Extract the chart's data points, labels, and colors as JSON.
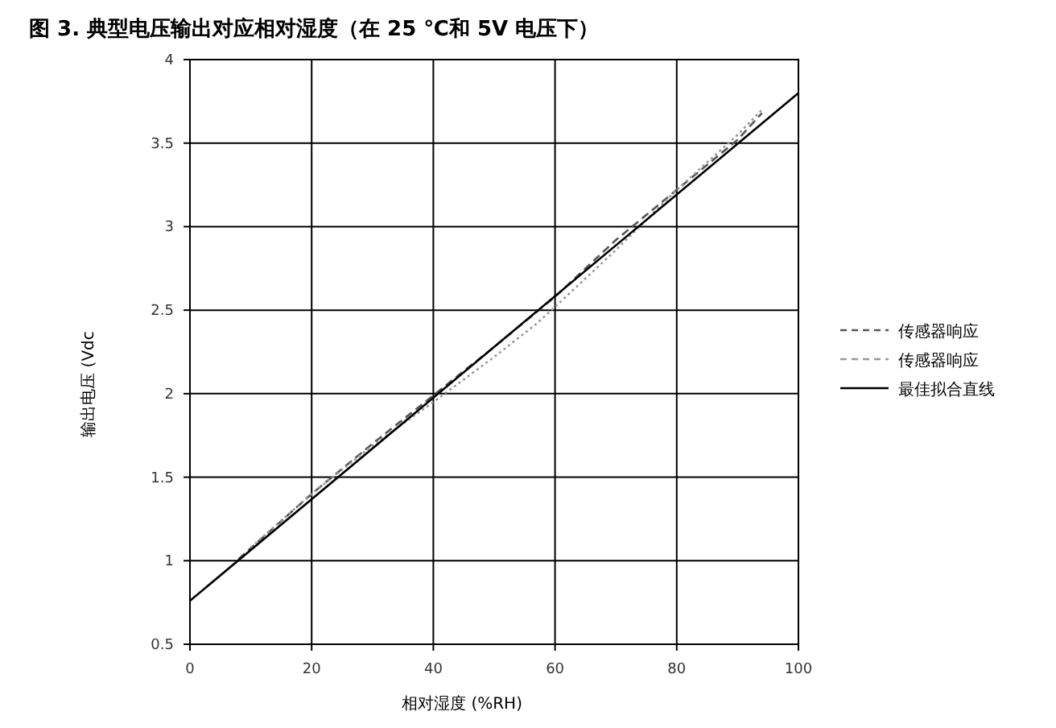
{
  "chart_data": {
    "type": "line",
    "title": "图 3. 典型电压输出对应相对湿度（在 25 ℃和 5V 电压下）",
    "xlabel": "相对湿度 (%RH)",
    "ylabel": "输出电压 (Vdc",
    "xlim": [
      0,
      100
    ],
    "ylim": [
      0.5,
      4
    ],
    "xticks": [
      0,
      20,
      40,
      60,
      80,
      100
    ],
    "yticks": [
      0.5,
      1,
      1.5,
      2,
      2.5,
      3,
      3.5,
      4
    ],
    "grid": true,
    "legend": "right",
    "series": [
      {
        "name": "传感器响应",
        "color": "#555555",
        "line_style": "dashed",
        "x": [
          8,
          20,
          30,
          40,
          50,
          60,
          70,
          80,
          90,
          94
        ],
        "values": [
          1.01,
          1.4,
          1.7,
          1.99,
          2.28,
          2.58,
          2.92,
          3.22,
          3.52,
          3.68
        ]
      },
      {
        "name": "传感器响应",
        "color": "#999999",
        "line_style": "dotted",
        "x": [
          10,
          20,
          30,
          40,
          50,
          57,
          60,
          70,
          80,
          90,
          94
        ],
        "values": [
          1.08,
          1.4,
          1.69,
          1.95,
          2.22,
          2.42,
          2.52,
          2.86,
          3.22,
          3.55,
          3.7
        ]
      },
      {
        "name": "最佳拟合直线",
        "color": "#000000",
        "line_style": "solid",
        "x": [
          0,
          100
        ],
        "values": [
          0.76,
          3.8
        ]
      }
    ]
  }
}
